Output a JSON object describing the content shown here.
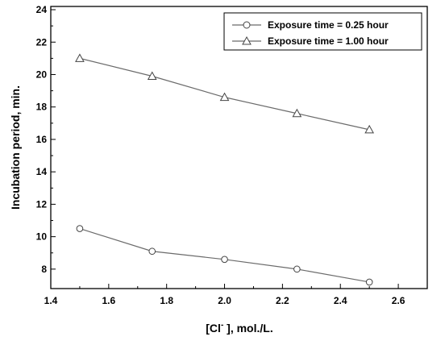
{
  "chart_data": {
    "type": "line",
    "xlabel_main": "[Cl",
    "xlabel_sup": "-",
    "xlabel_rest": " ], mol./L.",
    "ylabel": "Incubation period, min.",
    "xlim": [
      1.4,
      2.7
    ],
    "ylim": [
      6.8,
      24.2
    ],
    "xticks": [
      "1.4",
      "1.6",
      "1.8",
      "2.0",
      "2.2",
      "2.4",
      "2.6"
    ],
    "xtick_values": [
      1.4,
      1.6,
      1.8,
      2.0,
      2.2,
      2.4,
      2.6
    ],
    "yticks": [
      "8",
      "10",
      "12",
      "14",
      "16",
      "18",
      "20",
      "22",
      "24"
    ],
    "ytick_values": [
      8,
      10,
      12,
      14,
      16,
      18,
      20,
      22,
      24
    ],
    "grid": false,
    "legend_position": "top-right",
    "series": [
      {
        "name": "Exposure time = 0.25 hour",
        "marker": "circle",
        "x": [
          1.5,
          1.75,
          2.0,
          2.25,
          2.5
        ],
        "y": [
          10.5,
          9.1,
          8.6,
          8.0,
          7.2
        ]
      },
      {
        "name": "Exposure time = 1.00 hour",
        "marker": "triangle",
        "x": [
          1.5,
          1.75,
          2.0,
          2.25,
          2.5
        ],
        "y": [
          21.0,
          19.9,
          18.6,
          17.6,
          16.6
        ]
      }
    ]
  }
}
